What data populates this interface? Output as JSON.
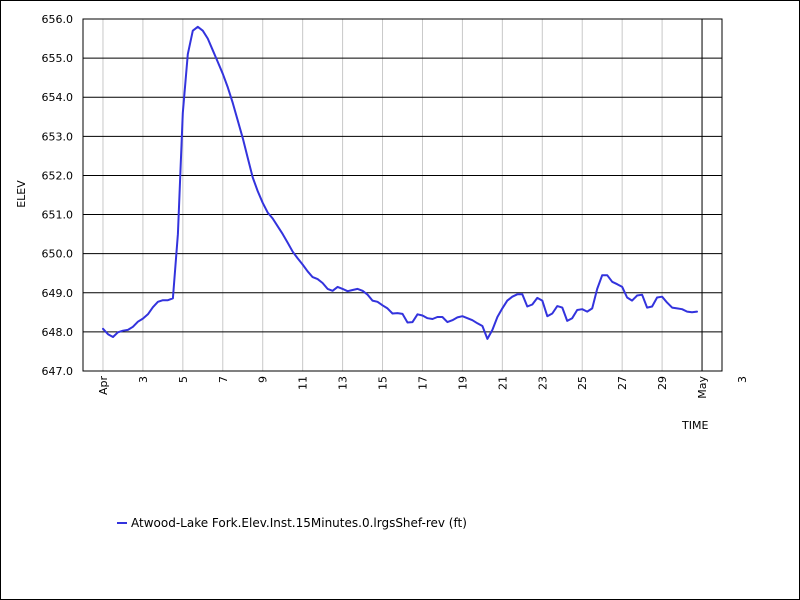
{
  "chart_data": {
    "type": "line",
    "ylabel": "ELEV",
    "xlabel": "TIME",
    "ylim": [
      647.0,
      656.0
    ],
    "y_ticks": [
      {
        "value": 647.0,
        "label": "647.0"
      },
      {
        "value": 648.0,
        "label": "648.0"
      },
      {
        "value": 649.0,
        "label": "649.0"
      },
      {
        "value": 650.0,
        "label": "650.0"
      },
      {
        "value": 651.0,
        "label": "651.0"
      },
      {
        "value": 652.0,
        "label": "652.0"
      },
      {
        "value": 653.0,
        "label": "653.0"
      },
      {
        "value": 654.0,
        "label": "654.0"
      },
      {
        "value": 655.0,
        "label": "655.0"
      },
      {
        "value": 656.0,
        "label": "656.0"
      }
    ],
    "xlim": [
      "Mar 31",
      "May 2"
    ],
    "x_ticks": [
      {
        "date": "Apr 1",
        "label": "Apr"
      },
      {
        "date": "Apr 3",
        "label": "3"
      },
      {
        "date": "Apr 5",
        "label": "5"
      },
      {
        "date": "Apr 7",
        "label": "7"
      },
      {
        "date": "Apr 9",
        "label": "9"
      },
      {
        "date": "Apr 11",
        "label": "11"
      },
      {
        "date": "Apr 13",
        "label": "13"
      },
      {
        "date": "Apr 15",
        "label": "15"
      },
      {
        "date": "Apr 17",
        "label": "17"
      },
      {
        "date": "Apr 19",
        "label": "19"
      },
      {
        "date": "Apr 21",
        "label": "21"
      },
      {
        "date": "Apr 23",
        "label": "23"
      },
      {
        "date": "Apr 25",
        "label": "25"
      },
      {
        "date": "Apr 27",
        "label": "27"
      },
      {
        "date": "Apr 29",
        "label": "29"
      },
      {
        "date": "May 1",
        "label": "May"
      },
      {
        "date": "May 3",
        "label": "3"
      }
    ],
    "grid": true,
    "legend_position": "bottom-left",
    "series": [
      {
        "name": "Atwood-Lake Fork.Elev.Inst.15Minutes.0.lrgsShef-rev (ft)",
        "color": "#3333dd",
        "points": [
          [
            "Apr 1 00:00",
            648.08
          ],
          [
            "Apr 1 06:00",
            647.94
          ],
          [
            "Apr 1 12:00",
            647.87
          ],
          [
            "Apr 1 18:00",
            647.99
          ],
          [
            "Apr 2 00:00",
            648.03
          ],
          [
            "Apr 2 06:00",
            648.05
          ],
          [
            "Apr 2 12:00",
            648.13
          ],
          [
            "Apr 2 18:00",
            648.26
          ],
          [
            "Apr 3 00:00",
            648.34
          ],
          [
            "Apr 3 06:00",
            648.45
          ],
          [
            "Apr 3 12:00",
            648.63
          ],
          [
            "Apr 3 18:00",
            648.77
          ],
          [
            "Apr 4 00:00",
            648.81
          ],
          [
            "Apr 4 06:00",
            648.81
          ],
          [
            "Apr 4 12:00",
            648.86
          ],
          [
            "Apr 4 18:00",
            650.5
          ],
          [
            "Apr 5 00:00",
            653.6
          ],
          [
            "Apr 5 06:00",
            655.1
          ],
          [
            "Apr 5 12:00",
            655.7
          ],
          [
            "Apr 5 18:00",
            655.8
          ],
          [
            "Apr 6 00:00",
            655.7
          ],
          [
            "Apr 6 06:00",
            655.5
          ],
          [
            "Apr 6 12:00",
            655.2
          ],
          [
            "Apr 6 18:00",
            654.9
          ],
          [
            "Apr 7 00:00",
            654.6
          ],
          [
            "Apr 7 06:00",
            654.25
          ],
          [
            "Apr 7 12:00",
            653.85
          ],
          [
            "Apr 7 18:00",
            653.4
          ],
          [
            "Apr 8 00:00",
            652.95
          ],
          [
            "Apr 8 06:00",
            652.45
          ],
          [
            "Apr 8 12:00",
            651.95
          ],
          [
            "Apr 8 18:00",
            651.6
          ],
          [
            "Apr 9 00:00",
            651.3
          ],
          [
            "Apr 9 06:00",
            651.05
          ],
          [
            "Apr 9 12:00",
            650.9
          ],
          [
            "Apr 9 18:00",
            650.7
          ],
          [
            "Apr 10 00:00",
            650.5
          ],
          [
            "Apr 10 06:00",
            650.28
          ],
          [
            "Apr 10 12:00",
            650.05
          ],
          [
            "Apr 10 18:00",
            649.88
          ],
          [
            "Apr 11 00:00",
            649.72
          ],
          [
            "Apr 11 06:00",
            649.55
          ],
          [
            "Apr 11 12:00",
            649.4
          ],
          [
            "Apr 11 18:00",
            649.35
          ],
          [
            "Apr 12 00:00",
            649.25
          ],
          [
            "Apr 12 06:00",
            649.1
          ],
          [
            "Apr 12 12:00",
            649.05
          ],
          [
            "Apr 12 18:00",
            649.15
          ],
          [
            "Apr 13 00:00",
            649.1
          ],
          [
            "Apr 13 06:00",
            649.04
          ],
          [
            "Apr 13 12:00",
            649.07
          ],
          [
            "Apr 13 18:00",
            649.1
          ],
          [
            "Apr 14 00:00",
            649.05
          ],
          [
            "Apr 14 06:00",
            648.95
          ],
          [
            "Apr 14 12:00",
            648.8
          ],
          [
            "Apr 14 18:00",
            648.77
          ],
          [
            "Apr 15 00:00",
            648.68
          ],
          [
            "Apr 15 06:00",
            648.6
          ],
          [
            "Apr 15 12:00",
            648.47
          ],
          [
            "Apr 15 18:00",
            648.48
          ],
          [
            "Apr 16 00:00",
            648.46
          ],
          [
            "Apr 16 06:00",
            648.24
          ],
          [
            "Apr 16 12:00",
            648.25
          ],
          [
            "Apr 16 18:00",
            648.45
          ],
          [
            "Apr 17 00:00",
            648.42
          ],
          [
            "Apr 17 06:00",
            648.35
          ],
          [
            "Apr 17 12:00",
            648.33
          ],
          [
            "Apr 17 18:00",
            648.38
          ],
          [
            "Apr 18 00:00",
            648.38
          ],
          [
            "Apr 18 06:00",
            648.25
          ],
          [
            "Apr 18 12:00",
            648.3
          ],
          [
            "Apr 18 18:00",
            648.37
          ],
          [
            "Apr 19 00:00",
            648.4
          ],
          [
            "Apr 19 06:00",
            648.35
          ],
          [
            "Apr 19 12:00",
            648.3
          ],
          [
            "Apr 19 18:00",
            648.22
          ],
          [
            "Apr 20 00:00",
            648.15
          ],
          [
            "Apr 20 06:00",
            647.82
          ],
          [
            "Apr 20 12:00",
            648.05
          ],
          [
            "Apr 20 18:00",
            648.38
          ],
          [
            "Apr 21 00:00",
            648.6
          ],
          [
            "Apr 21 06:00",
            648.8
          ],
          [
            "Apr 21 12:00",
            648.9
          ],
          [
            "Apr 21 18:00",
            648.96
          ],
          [
            "Apr 22 00:00",
            648.96
          ],
          [
            "Apr 22 06:00",
            648.65
          ],
          [
            "Apr 22 12:00",
            648.7
          ],
          [
            "Apr 22 18:00",
            648.87
          ],
          [
            "Apr 23 00:00",
            648.8
          ],
          [
            "Apr 23 06:00",
            648.4
          ],
          [
            "Apr 23 12:00",
            648.47
          ],
          [
            "Apr 23 18:00",
            648.66
          ],
          [
            "Apr 24 00:00",
            648.62
          ],
          [
            "Apr 24 06:00",
            648.28
          ],
          [
            "Apr 24 12:00",
            648.35
          ],
          [
            "Apr 24 18:00",
            648.56
          ],
          [
            "Apr 25 00:00",
            648.58
          ],
          [
            "Apr 25 06:00",
            648.52
          ],
          [
            "Apr 25 12:00",
            648.6
          ],
          [
            "Apr 25 18:00",
            649.1
          ],
          [
            "Apr 26 00:00",
            649.45
          ],
          [
            "Apr 26 06:00",
            649.45
          ],
          [
            "Apr 26 12:00",
            649.28
          ],
          [
            "Apr 26 18:00",
            649.22
          ],
          [
            "Apr 27 00:00",
            649.15
          ],
          [
            "Apr 27 06:00",
            648.88
          ],
          [
            "Apr 27 12:00",
            648.8
          ],
          [
            "Apr 27 18:00",
            648.93
          ],
          [
            "Apr 28 00:00",
            648.95
          ],
          [
            "Apr 28 06:00",
            648.62
          ],
          [
            "Apr 28 12:00",
            648.65
          ],
          [
            "Apr 28 18:00",
            648.88
          ],
          [
            "Apr 29 00:00",
            648.9
          ],
          [
            "Apr 29 06:00",
            648.75
          ],
          [
            "Apr 29 12:00",
            648.62
          ],
          [
            "Apr 29 18:00",
            648.6
          ],
          [
            "Apr 30 00:00",
            648.58
          ],
          [
            "Apr 30 06:00",
            648.52
          ],
          [
            "Apr 30 12:00",
            648.5
          ],
          [
            "Apr 30 18:00",
            648.52
          ]
        ]
      }
    ]
  }
}
